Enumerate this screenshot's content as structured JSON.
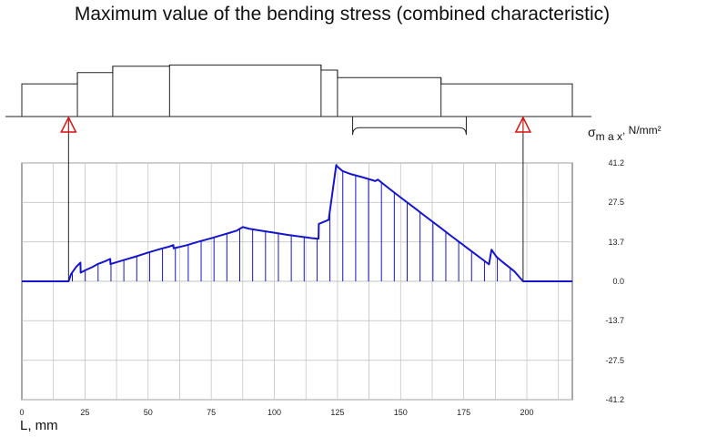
{
  "chart_data": {
    "type": "area",
    "title": "Maximum value of the bending stress (combined characteristic)",
    "xlabel": "L, mm",
    "ylabel": {
      "symbol": "σ",
      "subscript": "m a x",
      "unit": ", N/mm²"
    },
    "xlim": [
      0,
      218
    ],
    "ylim": [
      -41.2,
      41.2
    ],
    "x_ticks": [
      "0",
      "25",
      "50",
      "75",
      "100",
      "125",
      "150",
      "175",
      "200"
    ],
    "y_ticks": [
      "41.2",
      "27.5",
      "13.7",
      "0.0",
      "-13.7",
      "-27.5",
      "-41.2"
    ],
    "grid": true,
    "color": "#1515d0",
    "supports_x": [
      18.5,
      198.5
    ],
    "series": [
      {
        "x": [
          0,
          18.5,
          19.5,
          21.5,
          23.2,
          23.3,
          25,
          28,
          30,
          33,
          35,
          35.1,
          40,
          45,
          50,
          55,
          58,
          60,
          60.1,
          65,
          70,
          75,
          80,
          85,
          87.5,
          90,
          95,
          100,
          105,
          110,
          115,
          117.5,
          117.6,
          121,
          121.5,
          124.5,
          124.6,
          127,
          130,
          135,
          140,
          141,
          145,
          150,
          155,
          160,
          165,
          170,
          175,
          180,
          185,
          186,
          188,
          190,
          195,
          198.5,
          218
        ],
        "y": [
          0,
          0,
          2.5,
          5,
          6.5,
          3,
          3.8,
          5,
          6,
          7,
          7.8,
          6,
          7.3,
          8.6,
          10,
          11.3,
          12,
          12.6,
          11.5,
          12.5,
          13.8,
          15,
          16.3,
          17.6,
          18.9,
          18.3,
          17.6,
          16.9,
          16.2,
          15.6,
          15,
          14.8,
          20,
          21.2,
          21.4,
          40.5,
          40.2,
          38.4,
          37.4,
          36.2,
          34.9,
          35.4,
          32.6,
          29.2,
          25.9,
          22.5,
          19.2,
          15.8,
          12.5,
          9.2,
          5.9,
          11,
          8.5,
          7,
          3.5,
          0,
          0
        ]
      }
    ]
  },
  "shaft_profile": {
    "segments": [
      {
        "x0": 0,
        "x1": 22,
        "d": 52
      },
      {
        "x0": 22,
        "x1": 36,
        "d": 70
      },
      {
        "x0": 36,
        "x1": 58.5,
        "d": 80
      },
      {
        "x0": 58.5,
        "x1": 118.5,
        "d": 82
      },
      {
        "x0": 118.5,
        "x1": 125,
        "d": 74
      },
      {
        "x0": 125,
        "x1": 166,
        "d": 62
      },
      {
        "x0": 166,
        "x1": 218,
        "d": 52
      }
    ],
    "keyway": {
      "x0": 131,
      "x1": 176,
      "depth": 8
    }
  }
}
